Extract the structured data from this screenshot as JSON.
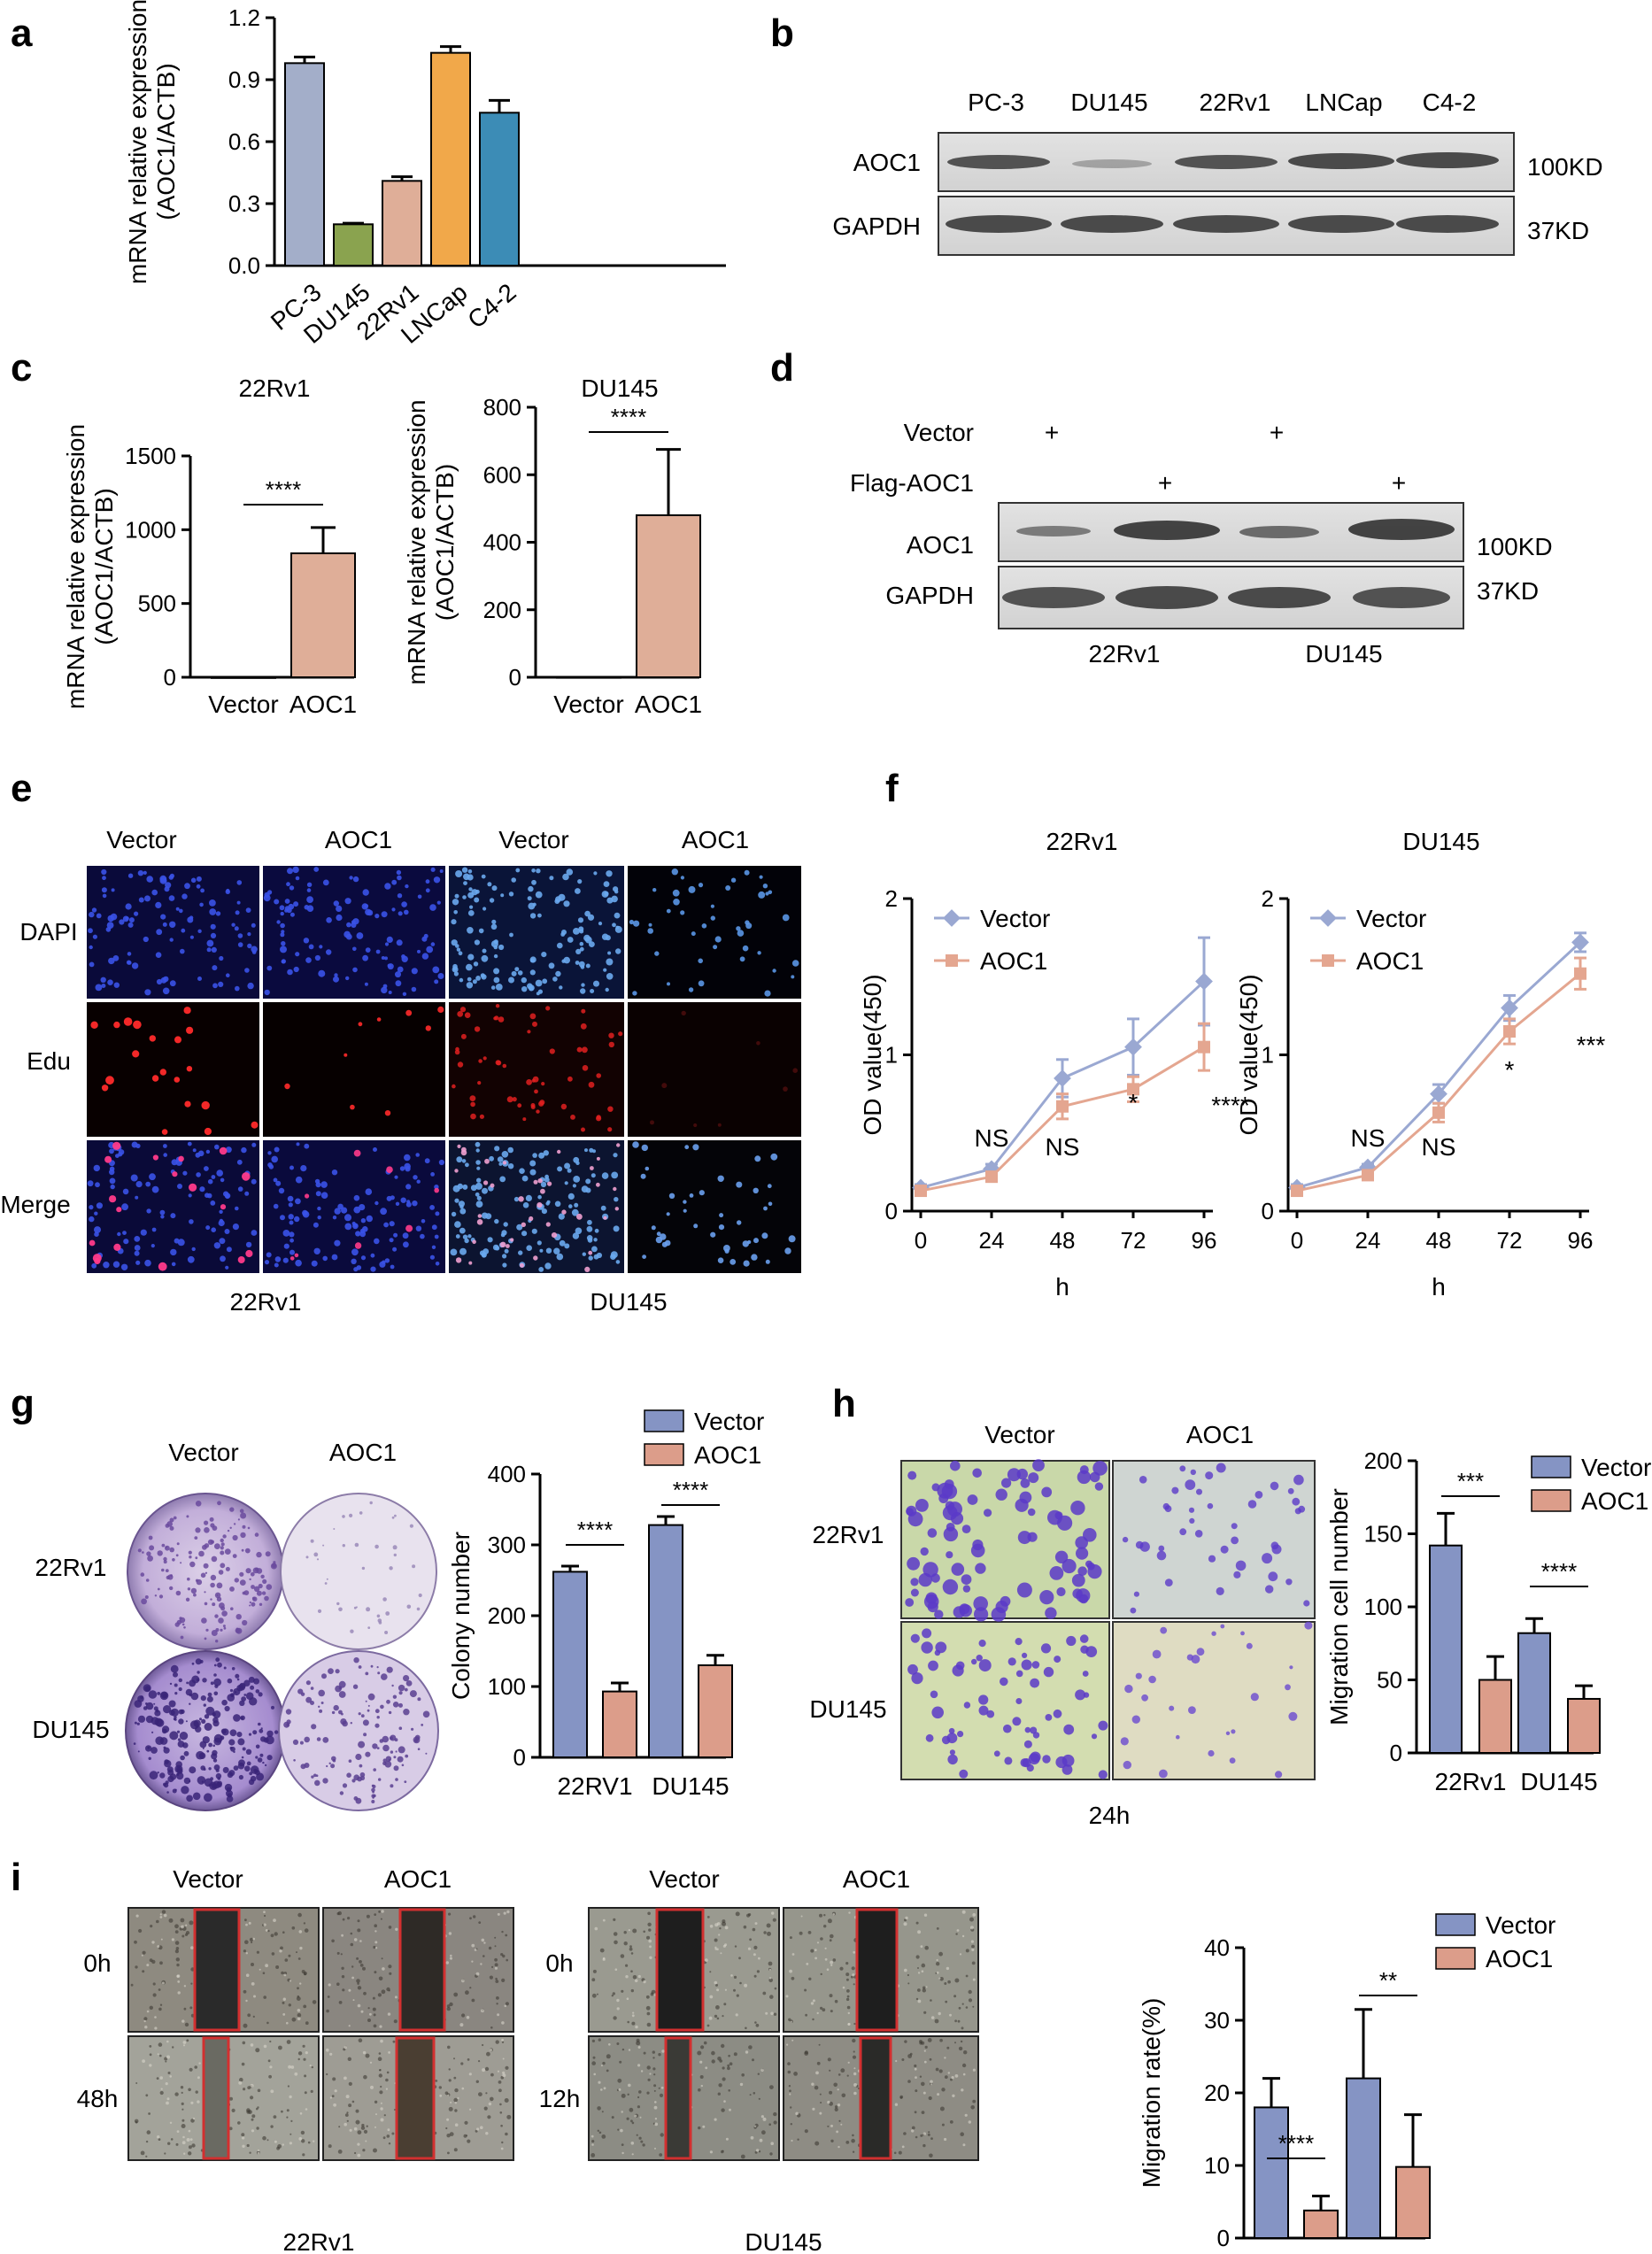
{
  "panels": {
    "a": {
      "label": "a"
    },
    "b": {
      "label": "b",
      "cols": [
        "PC-3",
        "DU145",
        "22Rv1",
        "LNCap",
        "C4-2"
      ],
      "rows": [
        "AOC1",
        "GAPDH"
      ],
      "sizes": [
        "100KD",
        "37KD"
      ]
    },
    "c": {
      "label": "c"
    },
    "d": {
      "label": "d",
      "row_labels": [
        "Vector",
        "Flag-AOC1"
      ],
      "rows": [
        "AOC1",
        "GAPDH"
      ],
      "sizes": [
        "100KD",
        "37KD"
      ],
      "groups": [
        "22Rv1",
        "DU145"
      ],
      "plus": "+"
    },
    "e": {
      "label": "e",
      "cols": [
        "Vector",
        "AOC1",
        "Vector",
        "AOC1"
      ],
      "rows": [
        "DAPI",
        "Edu",
        "Merge"
      ],
      "groups": [
        "22Rv1",
        "DU145"
      ]
    },
    "f": {
      "label": "f"
    },
    "g": {
      "label": "g",
      "cols": [
        "Vector",
        "AOC1"
      ],
      "rows": [
        "22Rv1",
        "DU145"
      ]
    },
    "h": {
      "label": "h",
      "cols": [
        "Vector",
        "AOC1"
      ],
      "rows": [
        "22Rv1",
        "DU145"
      ],
      "time": "24h"
    },
    "i": {
      "label": "i",
      "left_cols": [
        "Vector",
        "AOC1"
      ],
      "left_rows": [
        "0h",
        "48h"
      ],
      "left_group": "22Rv1",
      "right_cols": [
        "Vector",
        "AOC1"
      ],
      "right_rows": [
        "0h",
        "12h"
      ],
      "right_group": "DU145"
    }
  },
  "colors": {
    "pc3": "#a3aec9",
    "du145": "#8aa34f",
    "rv1": "#dfae98",
    "lncap": "#f1a84a",
    "c42": "#3c8cb6",
    "vector": "#8594c4",
    "aoc1": "#dc9d8a",
    "line_vector": "#9aa8d2",
    "line_aoc1": "#e4a690"
  },
  "chart_data": [
    {
      "id": "a",
      "type": "bar",
      "categories": [
        "PC-3",
        "DU145",
        "22Rv1",
        "LNCap",
        "C4-2"
      ],
      "values": [
        0.98,
        0.2,
        0.41,
        1.03,
        0.74
      ],
      "errors": [
        0.03,
        0.005,
        0.02,
        0.03,
        0.06
      ],
      "ylabel": "mRNA relative expression\n(AOC1/ACTB)",
      "ylim": [
        0,
        1.2
      ],
      "yticks": [
        "0.0",
        "0.3",
        "0.6",
        "0.9",
        "1.2"
      ]
    },
    {
      "id": "c1",
      "type": "bar",
      "title": "22Rv1",
      "categories": [
        "Vector",
        "AOC1"
      ],
      "values": [
        1,
        840
      ],
      "errors": [
        0,
        175
      ],
      "ylabel": "mRNA relative expression\n(AOC1/ACTB)",
      "ylim": [
        0,
        1500
      ],
      "yticks": [
        "0",
        "500",
        "1000",
        "1500"
      ],
      "sig": "****"
    },
    {
      "id": "c2",
      "type": "bar",
      "title": "DU145",
      "categories": [
        "Vector",
        "AOC1"
      ],
      "values": [
        1,
        480
      ],
      "errors": [
        0,
        195
      ],
      "ylabel": "mRNA relative expression\n(AOC1/ACTB)",
      "ylim": [
        0,
        800
      ],
      "yticks": [
        "0",
        "200",
        "400",
        "600",
        "800"
      ],
      "sig": "****"
    },
    {
      "id": "f1",
      "type": "line",
      "title": "22Rv1",
      "x": [
        0,
        24,
        48,
        72,
        96
      ],
      "xlabel": "h",
      "ylabel": "OD value(450)",
      "ylim": [
        0,
        2
      ],
      "yticks": [
        "0",
        "1",
        "2"
      ],
      "series": [
        {
          "name": "Vector",
          "values": [
            0.15,
            0.27,
            0.85,
            1.05,
            1.47
          ],
          "errors": [
            0.02,
            0.03,
            0.12,
            0.18,
            0.28
          ]
        },
        {
          "name": "AOC1",
          "values": [
            0.13,
            0.22,
            0.67,
            0.78,
            1.05
          ],
          "errors": [
            0.02,
            0.03,
            0.08,
            0.08,
            0.15
          ]
        }
      ],
      "annotations": [
        "NS",
        "NS",
        "*",
        "****"
      ]
    },
    {
      "id": "f2",
      "type": "line",
      "title": "DU145",
      "x": [
        0,
        24,
        48,
        72,
        96
      ],
      "xlabel": "h",
      "ylabel": "OD value(450)",
      "ylim": [
        0,
        2
      ],
      "yticks": [
        "0",
        "1",
        "2"
      ],
      "series": [
        {
          "name": "Vector",
          "values": [
            0.15,
            0.28,
            0.75,
            1.3,
            1.72
          ],
          "errors": [
            0.02,
            0.02,
            0.06,
            0.08,
            0.06
          ]
        },
        {
          "name": "AOC1",
          "values": [
            0.13,
            0.23,
            0.63,
            1.15,
            1.52
          ],
          "errors": [
            0.02,
            0.02,
            0.06,
            0.08,
            0.1
          ]
        }
      ],
      "annotations": [
        "NS",
        "NS",
        "*",
        "***"
      ]
    },
    {
      "id": "g",
      "type": "bar",
      "categories": [
        "22RV1",
        "DU145"
      ],
      "series": [
        {
          "name": "Vector",
          "values": [
            262,
            328
          ],
          "errors": [
            8,
            12
          ]
        },
        {
          "name": "AOC1",
          "values": [
            93,
            130
          ],
          "errors": [
            12,
            14
          ]
        }
      ],
      "ylabel": "Colony number",
      "ylim": [
        0,
        400
      ],
      "yticks": [
        "0",
        "100",
        "200",
        "300",
        "400"
      ],
      "sig": [
        "****",
        "****"
      ]
    },
    {
      "id": "h",
      "type": "bar",
      "categories": [
        "22Rv1",
        "DU145"
      ],
      "series": [
        {
          "name": "Vector",
          "values": [
            142,
            82
          ],
          "errors": [
            22,
            10
          ]
        },
        {
          "name": "AOC1",
          "values": [
            50,
            37
          ],
          "errors": [
            16,
            9
          ]
        }
      ],
      "ylabel": "Migration cell number",
      "ylim": [
        0,
        200
      ],
      "yticks": [
        "0",
        "50",
        "100",
        "150",
        "200"
      ],
      "sig": [
        "***",
        "****"
      ]
    },
    {
      "id": "i",
      "type": "bar",
      "categories": [
        "22Rv1",
        "DU145"
      ],
      "series": [
        {
          "name": "Vector",
          "values": [
            18,
            22
          ],
          "errors": [
            4,
            9.5
          ]
        },
        {
          "name": "AOC1",
          "values": [
            3.8,
            9.8
          ],
          "errors": [
            2,
            7.2
          ]
        }
      ],
      "ylabel": "Migration rate(%)",
      "ylim": [
        0,
        40
      ],
      "yticks": [
        "0",
        "10",
        "20",
        "30",
        "40"
      ],
      "sig": [
        "****",
        "**"
      ]
    }
  ]
}
